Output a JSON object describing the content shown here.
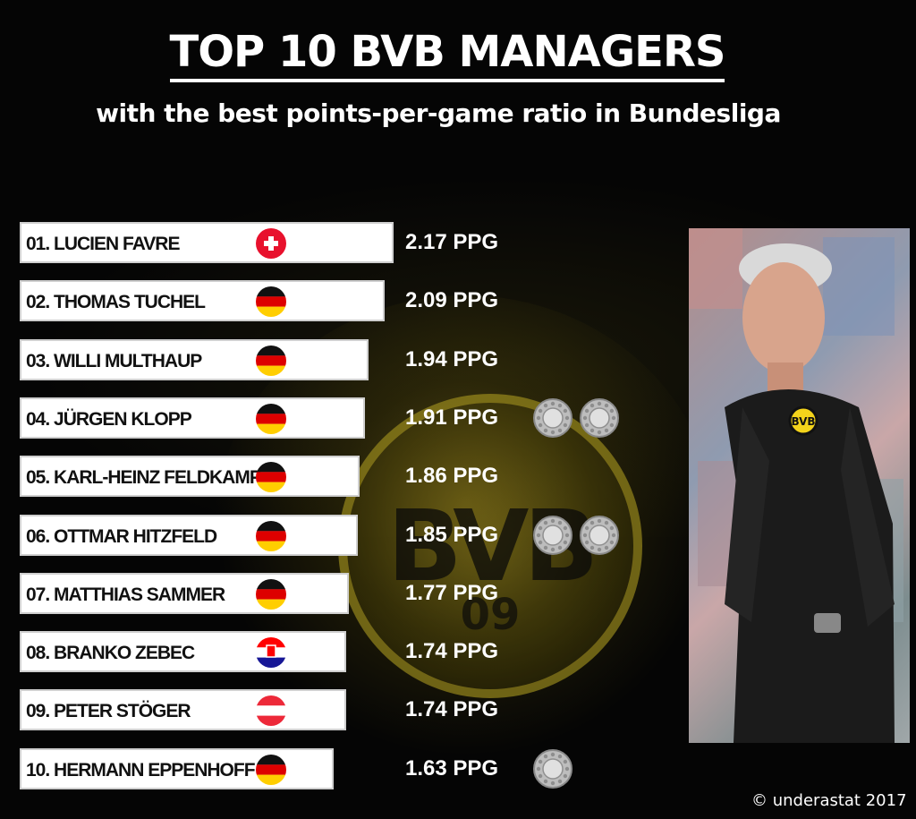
{
  "title": "TOP 10 BVB MANAGERS",
  "subtitle": "with the best points-per-game ratio in Bundesliga",
  "credit": "© underastat 2017",
  "colors": {
    "background": "#050505",
    "bar": "#ffffff",
    "logo_yellow": "#c8b428",
    "trophy_silver": "#c8c8c8"
  },
  "photo": {
    "description_icon": "manager-portrait-icon"
  },
  "chart_data": {
    "type": "table",
    "title": "TOP 10 BVB MANAGERS",
    "subtitle": "with the best points-per-game ratio in Bundesliga",
    "unit": "PPG",
    "rows": [
      {
        "rank": "01.",
        "name": "LUCIEN FAVRE",
        "label": "01. LUCIEN FAVRE",
        "flag": "switzerland",
        "ppg": 2.17,
        "ppg_label": "2.17 PPG",
        "titles": 0
      },
      {
        "rank": "02.",
        "name": "THOMAS TUCHEL",
        "label": "02. THOMAS TUCHEL",
        "flag": "germany",
        "ppg": 2.09,
        "ppg_label": "2.09 PPG",
        "titles": 0
      },
      {
        "rank": "03.",
        "name": "WILLI MULTHAUP",
        "label": "03. WILLI MULTHAUP",
        "flag": "germany",
        "ppg": 1.94,
        "ppg_label": "1.94 PPG",
        "titles": 0
      },
      {
        "rank": "04.",
        "name": "JÜRGEN KLOPP",
        "label": "04. JÜRGEN KLOPP",
        "flag": "germany",
        "ppg": 1.91,
        "ppg_label": "1.91 PPG",
        "titles": 2
      },
      {
        "rank": "05.",
        "name": "KARL-HEINZ FELDKAMP",
        "label": "05. KARL-HEINZ FELDKAMP",
        "flag": "germany",
        "ppg": 1.86,
        "ppg_label": "1.86 PPG",
        "titles": 0
      },
      {
        "rank": "06.",
        "name": "OTTMAR HITZFELD",
        "label": "06. OTTMAR HITZFELD",
        "flag": "germany",
        "ppg": 1.85,
        "ppg_label": "1.85 PPG",
        "titles": 2
      },
      {
        "rank": "07.",
        "name": "MATTHIAS SAMMER",
        "label": "07. MATTHIAS SAMMER",
        "flag": "germany",
        "ppg": 1.77,
        "ppg_label": "1.77 PPG",
        "titles": 0
      },
      {
        "rank": "08.",
        "name": "BRANKO ZEBEC",
        "label": "08. BRANKO ZEBEC",
        "flag": "croatia",
        "ppg": 1.74,
        "ppg_label": "1.74 PPG",
        "titles": 0
      },
      {
        "rank": "09.",
        "name": "PETER STÖGER",
        "label": "09. PETER STÖGER",
        "flag": "austria",
        "ppg": 1.74,
        "ppg_label": "1.74 PPG",
        "titles": 0
      },
      {
        "rank": "10.",
        "name": "HERMANN EPPENHOFF",
        "label": "10. HERMANN EPPENHOFF",
        "flag": "germany",
        "ppg": 1.63,
        "ppg_label": "1.63 PPG",
        "titles": 1
      }
    ]
  }
}
